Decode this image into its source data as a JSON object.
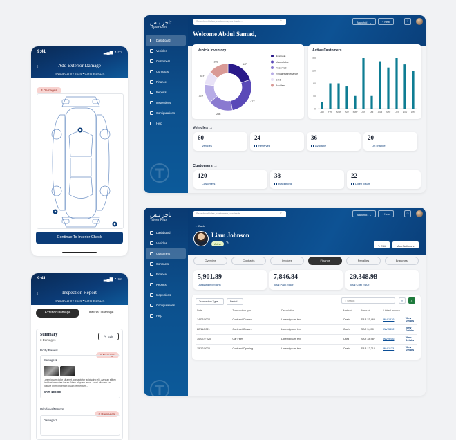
{
  "phone1": {
    "time": "9:41",
    "title": "Add Exterior Damage",
    "subtitle": "Toyota Camry 2024  •  Contract #124",
    "damage_badge": "3 Damages",
    "cta": "Continue To Interior Check"
  },
  "phone2": {
    "time": "9:41",
    "title": "Inspection Report",
    "subtitle": "Toyota Camry 2024  •  Contract #124",
    "tabs": [
      "Exterior Damage",
      "Interior Damage"
    ],
    "summary_title": "Summary",
    "summary_count": "3 Damages",
    "edit_label": "Edit",
    "body_panels": "Body Panels",
    "body_badge": "1 Damage",
    "damage_label": "Damage 1",
    "damage_text": "Lorem ipsum dolor sit amet, consectetur adipiscing elit. Aenean elit ex tincidunt non vitae ipsum. Nunc aliquam lacus. Ac mi aliquam lus posture enim imperdiet ipsum fermentum...",
    "damage_price": "SAR 100.00",
    "windows": "Windows/Mirrors",
    "windows_badge": "2 Damages",
    "damage2_label": "Damage 1"
  },
  "dashboard": {
    "logo_ar": "تاجر بلس",
    "logo_en": "Tajeer Plus",
    "search_placeholder": "Search vehicles, customers, contracts...",
    "branch_label": "Branch #1",
    "new_label": "New",
    "nav": [
      "Dashboard",
      "Vehicles",
      "Customers",
      "Contracts",
      "Finance",
      "Reports",
      "Inspections",
      "Configurations",
      "Help"
    ],
    "welcome": "Welcome Abdul Samad,",
    "vehicle_inventory": "Vehicle Inventory",
    "active_customers": "Active Customers",
    "vehicles_section": "Vehicles",
    "customers_section": "Customers",
    "vehicle_stats": [
      {
        "value": "60",
        "label": "Vehicles"
      },
      {
        "value": "24",
        "label": "Reserved"
      },
      {
        "value": "36",
        "label": "Available"
      },
      {
        "value": "20",
        "label": "On change"
      }
    ],
    "customer_stats": [
      {
        "value": "120",
        "label": "Customers"
      },
      {
        "value": "38",
        "label": "Blacklisted"
      },
      {
        "value": "22",
        "label": "Loren Ipsum"
      }
    ]
  },
  "customer": {
    "logo_ar": "تاجر بلس",
    "logo_en": "Tajeer Plus",
    "search_placeholder": "Search vehicles, customers, contracts...",
    "branch_label": "Branch #1",
    "new_label": "New",
    "nav": [
      "Dashboard",
      "Vehicles",
      "Customers",
      "Contracts",
      "Finance",
      "Reports",
      "Inspections",
      "Configurations",
      "Help"
    ],
    "back": "Back",
    "name": "Liam Johnson",
    "status": "Active",
    "edit": "Edit",
    "more_actions": "More Actions",
    "tabs": [
      "Overview",
      "Contracts",
      "Invoices",
      "Finance",
      "Penalties",
      "Branches"
    ],
    "stats": [
      {
        "value": "5,901.89",
        "label": "Outstanding (SAR)"
      },
      {
        "value": "7,846.84",
        "label": "Total Paid (SAR)"
      },
      {
        "value": "29,348.98",
        "label": "Total Cost (SAR)"
      }
    ],
    "filter1": "Transaction Type",
    "filter2": "Period",
    "search": "Search",
    "columns": [
      "Date",
      "Transaction type",
      "Description",
      "Method",
      "Amount",
      "Linked Invoice",
      ""
    ],
    "rows": [
      [
        "14/03/2022",
        "Contract Closure",
        "Lorem ipsum text",
        "Cash",
        "SAR 23,465",
        "INV-1576",
        "View Details"
      ],
      [
        "22/11/2021",
        "Contract Closure",
        "Lorem ipsum text",
        "Cash",
        "SAR 3,670",
        "INV-5432",
        "View Details"
      ],
      [
        "30/07/2 020",
        "Car Fees",
        "Lorem ipsum text",
        "Card",
        "SAR 34,987",
        "INV-9786",
        "View Details"
      ],
      [
        "15/12/2020",
        "Contract Opening",
        "Lorem ipsum text",
        "Cash",
        "SAR 12,210",
        "INV-1123",
        "View Details"
      ]
    ]
  },
  "chart_data": [
    {
      "type": "pie",
      "title": "Vehicle Inventory",
      "categories": [
        "Available",
        "Unavailable",
        "Reserved",
        "Repair/Maintenance",
        "Sold",
        "Accident"
      ],
      "values": [
        347,
        477,
        298,
        224,
        167,
        242
      ],
      "colors": [
        "#2a1a8a",
        "#5a49b8",
        "#8a7ad0",
        "#b7ace6",
        "#e8e2f7",
        "#d99a96"
      ],
      "legend": "right"
    },
    {
      "type": "bar",
      "title": "Active Customers",
      "categories": [
        "Jan",
        "Feb",
        "Mar",
        "Apr",
        "May",
        "Jun",
        "Jul",
        "Aug",
        "Sep",
        "Oct",
        "Nov",
        "Dec"
      ],
      "values": [
        20,
        80,
        80,
        70,
        40,
        160,
        40,
        150,
        130,
        160,
        140,
        120
      ],
      "ylim": [
        0,
        160
      ],
      "yticks": [
        0,
        40,
        80,
        120,
        160
      ],
      "color": "#0e7d93"
    }
  ]
}
